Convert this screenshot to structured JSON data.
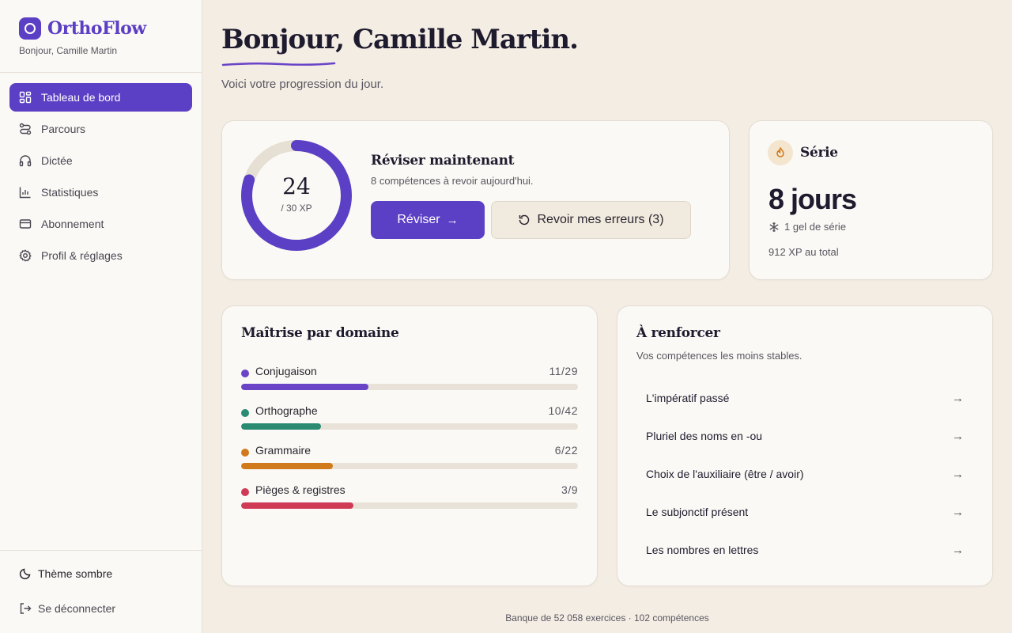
{
  "app": {
    "name": "OrthoFlow",
    "greeting": "Bonjour, Camille Martin"
  },
  "sidebar": {
    "items": [
      {
        "label": "Tableau de bord",
        "icon": "dashboard-icon",
        "active": true
      },
      {
        "label": "Parcours",
        "icon": "route-icon"
      },
      {
        "label": "Dictée",
        "icon": "headphones-icon"
      },
      {
        "label": "Statistiques",
        "icon": "bar-chart-icon"
      },
      {
        "label": "Abonnement",
        "icon": "credit-card-icon"
      },
      {
        "label": "Profil & réglages",
        "icon": "gear-icon"
      }
    ],
    "theme_label": "Thème sombre",
    "logout_label": "Se déconnecter"
  },
  "header": {
    "title": "Bonjour, Camille Martin.",
    "subtitle": "Voici votre progression du jour."
  },
  "xp": {
    "value": "24",
    "goal_label": "/ 30 XP",
    "progress": 0.8
  },
  "review": {
    "title": "Réviser maintenant",
    "subtitle": "8 compétences à revoir aujourd'hui.",
    "primary_label": "Réviser",
    "secondary_label": "Revoir mes erreurs (3)"
  },
  "streak": {
    "title": "Série",
    "days": "8 jours",
    "freeze": "1 gel de série",
    "total": "912 XP au total"
  },
  "mastery": {
    "title": "Maîtrise par domaine",
    "domains": [
      {
        "name": "Conjugaison",
        "count": "11/29",
        "progress": 0.379,
        "color": "#6a44c7"
      },
      {
        "name": "Orthographe",
        "count": "10/42",
        "progress": 0.238,
        "color": "#2a8a72"
      },
      {
        "name": "Grammaire",
        "count": "6/22",
        "progress": 0.273,
        "color": "#d07a1c"
      },
      {
        "name": "Pièges & registres",
        "count": "3/9",
        "progress": 0.333,
        "color": "#cf3a55"
      }
    ]
  },
  "reinforce": {
    "title": "À renforcer",
    "subtitle": "Vos compétences les moins stables.",
    "items": [
      "L'impératif passé",
      "Pluriel des noms en -ou",
      "Choix de l'auxiliaire (être / avoir)",
      "Le subjonctif présent",
      "Les nombres en lettres"
    ]
  },
  "footer": "Banque de 52 058 exercices · 102 compétences",
  "colors": {
    "accent": "#5b3fc4",
    "background": "#f3ede4",
    "card": "#fbf9f5",
    "streak": "#d07a1c"
  }
}
